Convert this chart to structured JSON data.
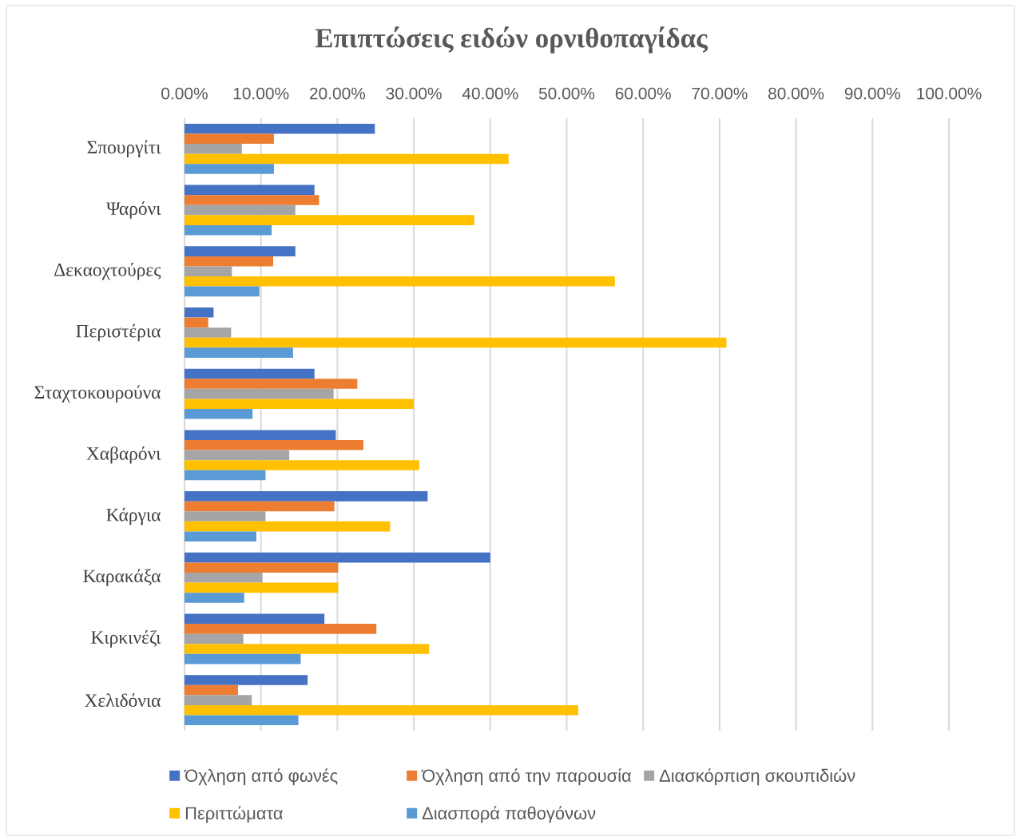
{
  "chart_data": {
    "type": "bar",
    "orientation": "horizontal",
    "title": "Επιπτώσεις ειδών ορνιθοπαγίδας",
    "categories": [
      "Σπουργίτι",
      "Ψαρόνι",
      "Δεκαοχτούρες",
      "Περιστέρια",
      "Σταχτοκουρούνα",
      "Χαβαρόνι",
      "Κάργια",
      "Καρακάξα",
      "Κιρκινέζι",
      "Χελιδόνια"
    ],
    "series": [
      {
        "name": "Όχληση από φωνές",
        "color": "#4472c4",
        "values": [
          24.9,
          17.0,
          14.5,
          3.8,
          17.0,
          19.8,
          31.8,
          40.0,
          18.3,
          16.1
        ]
      },
      {
        "name": "Όχληση από την παρουσία",
        "color": "#ed7d31",
        "values": [
          11.7,
          17.6,
          11.6,
          3.1,
          22.6,
          23.4,
          19.6,
          20.1,
          25.1,
          7.0
        ]
      },
      {
        "name": "Διασκόρπιση σκουπιδιών",
        "color": "#a5a5a5",
        "values": [
          7.5,
          14.5,
          6.2,
          6.1,
          19.5,
          13.7,
          10.6,
          10.2,
          7.7,
          8.8
        ]
      },
      {
        "name": "Περιττώματα",
        "color": "#ffc000",
        "values": [
          42.4,
          37.9,
          56.3,
          70.9,
          30.0,
          30.7,
          26.9,
          20.1,
          32.0,
          51.5
        ]
      },
      {
        "name": "Διασπορά παθογόνων",
        "color": "#5b9bd5",
        "values": [
          11.7,
          11.4,
          9.8,
          14.2,
          8.9,
          10.6,
          9.4,
          7.8,
          15.2,
          14.9
        ]
      }
    ],
    "xlim": [
      0,
      100
    ],
    "xticks": [
      {
        "value": 0,
        "label": "0.00%"
      },
      {
        "value": 10,
        "label": "10.00%"
      },
      {
        "value": 20,
        "label": "20.00%"
      },
      {
        "value": 30,
        "label": "30.00%"
      },
      {
        "value": 40,
        "label": "40.00%"
      },
      {
        "value": 50,
        "label": "50.00%"
      },
      {
        "value": 60,
        "label": "60.00%"
      },
      {
        "value": 70,
        "label": "70.00%"
      },
      {
        "value": 80,
        "label": "80.00%"
      },
      {
        "value": 90,
        "label": "90.00%"
      },
      {
        "value": 100,
        "label": "100.00%"
      }
    ],
    "grid": "x",
    "legend": "bottom"
  }
}
